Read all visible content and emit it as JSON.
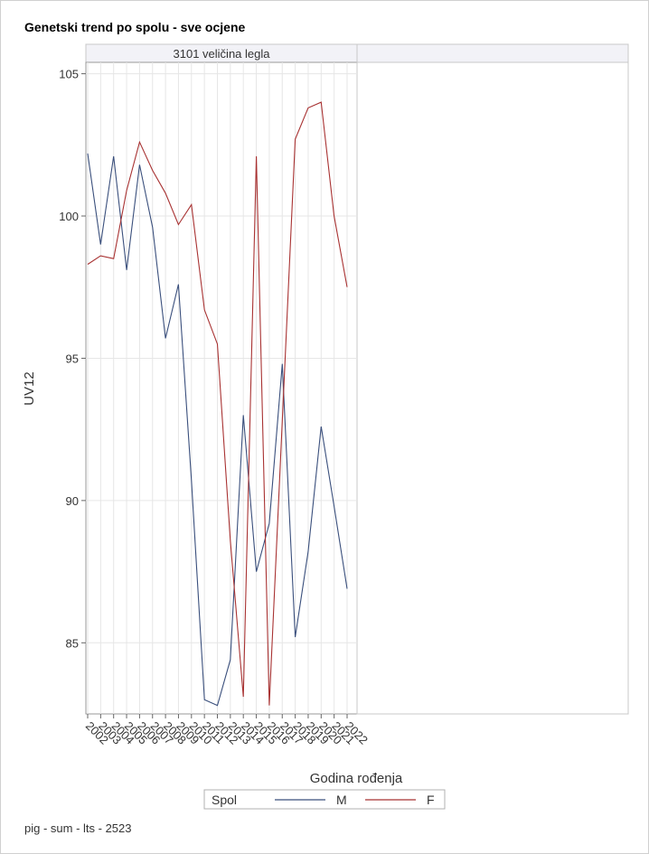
{
  "chart_data": {
    "type": "line",
    "title": "Genetski trend po spolu - sve ocjene",
    "panel_label": "3101 veličina legla",
    "xlabel": "Godina rođenja",
    "ylabel": "UV12",
    "ylim": [
      82.5,
      105.4
    ],
    "yticks": [
      85,
      90,
      95,
      100,
      105
    ],
    "x": [
      "2002",
      "2003",
      "2004",
      "2005",
      "2006",
      "2007",
      "2008",
      "2009",
      "2010",
      "2011",
      "2012",
      "2013",
      "2014",
      "2015",
      "2016",
      "2017",
      "2018",
      "2019",
      "2020",
      "2021",
      "2022"
    ],
    "grid": true,
    "legend": {
      "title": "Spol",
      "position": "bottom"
    },
    "series": [
      {
        "name": "M",
        "color": "#3a4f7c",
        "values": [
          102.2,
          99.0,
          102.1,
          98.1,
          101.8,
          99.6,
          95.7,
          97.6,
          90.7,
          83.0,
          82.8,
          84.4,
          93.0,
          87.5,
          89.2,
          94.8,
          85.2,
          88.2,
          92.6,
          89.8,
          86.9
        ]
      },
      {
        "name": "F",
        "color": "#a83232",
        "values": [
          98.3,
          98.6,
          98.5,
          100.9,
          102.6,
          101.6,
          100.8,
          99.7,
          100.4,
          96.7,
          95.5,
          88.6,
          83.1,
          102.1,
          82.8,
          92.8,
          102.7,
          103.8,
          104.0,
          100.0,
          97.5
        ]
      }
    ]
  },
  "footer": "pig - sum - lts - 2523"
}
